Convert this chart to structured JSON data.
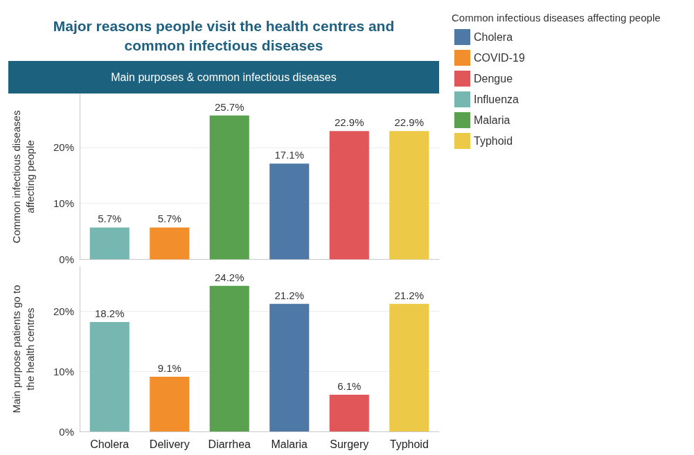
{
  "chart_data": [
    {
      "type": "bar",
      "title": "Major reasons people visit the health centres and\ncommon infectious diseases",
      "subtitle": "Main purposes & common infectious diseases",
      "ylabel": "Common infectious diseases affecting people",
      "legend_title": "Common infectious diseases affecting people",
      "legend": "right",
      "stacked": true,
      "grid": "y",
      "tick_labels": "y",
      "categories": [
        null,
        null,
        null,
        null,
        null,
        null
      ],
      "ylim": [
        0,
        29.5
      ],
      "yticks": [
        {
          "value": 0,
          "label": "0%"
        },
        {
          "value": 10,
          "label": "10%"
        },
        {
          "value": 20,
          "label": "20%"
        }
      ],
      "series": [
        {
          "name": "Cholera",
          "color": "#4e79a7",
          "values": [
            null,
            null,
            null,
            17.1,
            null,
            null
          ],
          "value_labels": [
            null,
            null,
            null,
            "17.1%",
            null,
            null
          ]
        },
        {
          "name": "COVID-19",
          "color": "#f28e2b",
          "values": [
            null,
            5.7,
            null,
            null,
            null,
            null
          ],
          "value_labels": [
            null,
            "5.7%",
            null,
            null,
            null,
            null
          ]
        },
        {
          "name": "Dengue",
          "color": "#e15759",
          "values": [
            null,
            null,
            null,
            null,
            22.9,
            null
          ],
          "value_labels": [
            null,
            null,
            null,
            null,
            "22.9%",
            null
          ]
        },
        {
          "name": "Influenza",
          "color": "#76b7b2",
          "values": [
            5.7,
            null,
            null,
            null,
            null,
            null
          ],
          "value_labels": [
            "5.7%",
            null,
            null,
            null,
            null,
            null
          ]
        },
        {
          "name": "Malaria",
          "color": "#59a14f",
          "values": [
            null,
            null,
            25.7,
            null,
            null,
            null
          ],
          "value_labels": [
            null,
            null,
            "25.7%",
            null,
            null,
            null
          ]
        },
        {
          "name": "Typhoid",
          "color": "#edc948",
          "values": [
            null,
            null,
            null,
            null,
            null,
            22.9
          ],
          "value_labels": [
            null,
            null,
            null,
            null,
            null,
            "22.9%"
          ]
        }
      ]
    },
    {
      "type": "bar",
      "ylabel": "Main purpose patients go to the health centres",
      "stacked": true,
      "grid": "y",
      "categories": [
        "Cholera",
        "Delivery",
        "Diarrhea",
        "Malaria",
        "Surgery",
        "Typhoid"
      ],
      "ylim": [
        0,
        27.4
      ],
      "yticks": [
        {
          "value": 0,
          "label": "0%"
        },
        {
          "value": 10,
          "label": "10%"
        },
        {
          "value": 20,
          "label": "20%"
        }
      ],
      "series": [
        {
          "color": "#4e79a7",
          "values": [
            null,
            null,
            null,
            21.2,
            null,
            null
          ],
          "value_labels": [
            null,
            null,
            null,
            "21.2%",
            null,
            null
          ]
        },
        {
          "color": "#f28e2b",
          "values": [
            null,
            9.1,
            null,
            null,
            null,
            null
          ],
          "value_labels": [
            null,
            "9.1%",
            null,
            null,
            null,
            null
          ]
        },
        {
          "color": "#e15759",
          "values": [
            null,
            null,
            null,
            null,
            6.1,
            null
          ],
          "value_labels": [
            null,
            null,
            null,
            null,
            "6.1%",
            null
          ]
        },
        {
          "color": "#76b7b2",
          "values": [
            18.2,
            null,
            null,
            null,
            null,
            null
          ],
          "value_labels": [
            "18.2%",
            null,
            null,
            null,
            null,
            null
          ]
        },
        {
          "color": "#59a14f",
          "values": [
            null,
            null,
            24.2,
            null,
            null,
            null
          ],
          "value_labels": [
            null,
            null,
            "24.2%",
            null,
            null,
            null
          ]
        },
        {
          "color": "#edc948",
          "values": [
            null,
            null,
            null,
            null,
            null,
            21.2
          ],
          "value_labels": [
            null,
            null,
            null,
            null,
            null,
            "21.2%"
          ]
        }
      ]
    }
  ]
}
